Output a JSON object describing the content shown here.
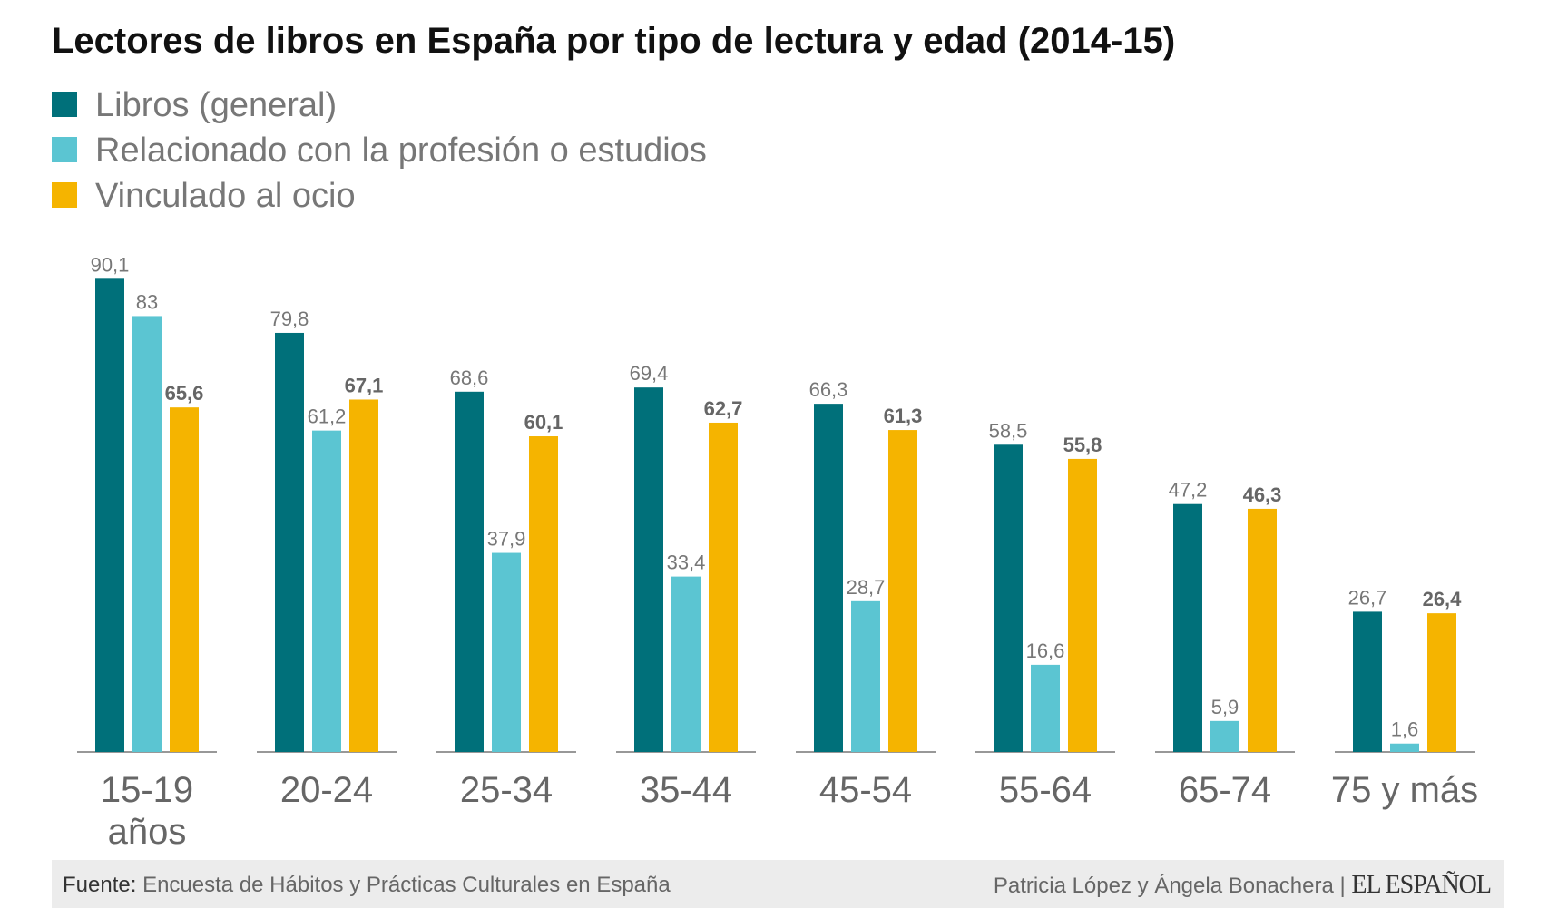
{
  "chart_data": {
    "type": "bar",
    "title": "Lectores de libros en España por tipo de lectura y edad (2014-15)",
    "categories": [
      "15-19 años",
      "20-24",
      "25-34",
      "35-44",
      "45-54",
      "55-64",
      "65-74",
      "75 y más"
    ],
    "series": [
      {
        "name": "Libros (general)",
        "color": "#00707a",
        "values": [
          90.1,
          79.8,
          68.6,
          69.4,
          66.3,
          58.5,
          47.2,
          26.7
        ],
        "value_labels": [
          "90,1",
          "79,8",
          "68,6",
          "69,4",
          "66,3",
          "58,5",
          "47,2",
          "26,7"
        ]
      },
      {
        "name": "Relacionado con la profesión o estudios",
        "color": "#5bc5d2",
        "values": [
          83,
          61.2,
          37.9,
          33.4,
          28.7,
          16.6,
          5.9,
          1.6
        ],
        "value_labels": [
          "83",
          "61,2",
          "37,9",
          "33,4",
          "28,7",
          "16,6",
          "5,9",
          "1,6"
        ]
      },
      {
        "name": "Vinculado al ocio",
        "color": "#f5b400",
        "values": [
          65.6,
          67.1,
          60.1,
          62.7,
          61.3,
          55.8,
          46.3,
          26.4
        ],
        "value_labels": [
          "65,6",
          "67,1",
          "60,1",
          "62,7",
          "61,3",
          "55,8",
          "46,3",
          "26,4"
        ]
      }
    ],
    "source_label": "Fuente:",
    "source": "Encuesta de Hábitos y Prácticas Culturales en España",
    "credit": "Patricia López y Ángela Bonachera",
    "brand": "EL ESPAÑOL"
  }
}
